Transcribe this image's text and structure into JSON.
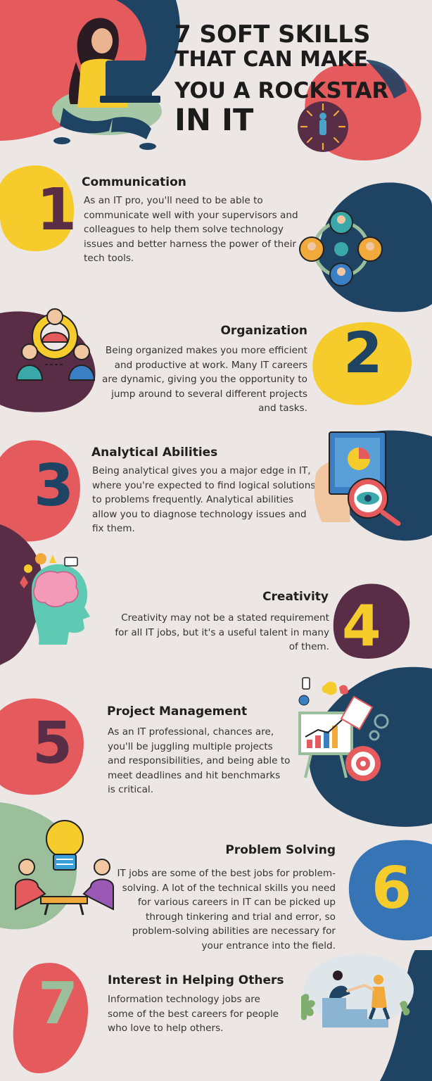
{
  "header": {
    "title_line1": "7 SOFT SKILLS",
    "title_line2": "THAT CAN MAKE",
    "title_line3": "YOU A ROCKSTAR",
    "title_line4": "IN IT"
  },
  "sections": [
    {
      "number": "1",
      "title": "Communication",
      "body": "As an IT pro, you'll need to be able to communicate well with your supervisors and colleagues to help them solve technology issues and better harness the power of their tech tools."
    },
    {
      "number": "2",
      "title": "Organization",
      "body": "Being organized makes you more efficient and productive at work. Many IT careers are dynamic, giving you the opportunity to jump around to several different projects and tasks."
    },
    {
      "number": "3",
      "title": "Analytical Abilities",
      "body": "Being analytical gives you a major edge in IT, where you're expected to find logical solutions to problems frequently. Analytical abilities allow you to diagnose technology issues and fix them."
    },
    {
      "number": "4",
      "title": "Creativity",
      "body": "Creativity may not be a stated requirement for all IT jobs, but it's a useful talent in many of them."
    },
    {
      "number": "5",
      "title": "Project Management",
      "body": "As an IT professional, chances are, you'll be juggling multiple projects and responsibilities, and being able to meet deadlines and hit benchmarks is critical."
    },
    {
      "number": "6",
      "title": "Problem Solving",
      "body": "IT jobs are some of the best jobs for problem-solving. A lot of the technical skills you need for various careers in IT can be picked up through tinkering and trial and error, so problem-solving abilities are necessary for your entrance into the field."
    },
    {
      "number": "7",
      "title": "Interest in Helping Others",
      "body": "Information technology jobs are some of the best careers for people who love to help others."
    }
  ],
  "colors": {
    "background": "#ece7e5",
    "red": "#e45a5d",
    "navy": "#1f4363",
    "plum": "#5a2d47",
    "yellow": "#f5cc2c",
    "sage": "#9bbf9a",
    "blue": "#3774b6",
    "text": "#333333"
  },
  "icons": {
    "header": "woman-laptop-illustration",
    "header_badge": "focus-person-arrows-icon",
    "s1": "team-network-icon",
    "s2": "team-gear-icon",
    "s3": "head-eye-analysis-icon",
    "s4": "creative-brain-icon",
    "s5": "presentation-target-icon",
    "s6": "lightbulb-teamwork-icon",
    "s7": "helping-hand-climb-icon"
  }
}
